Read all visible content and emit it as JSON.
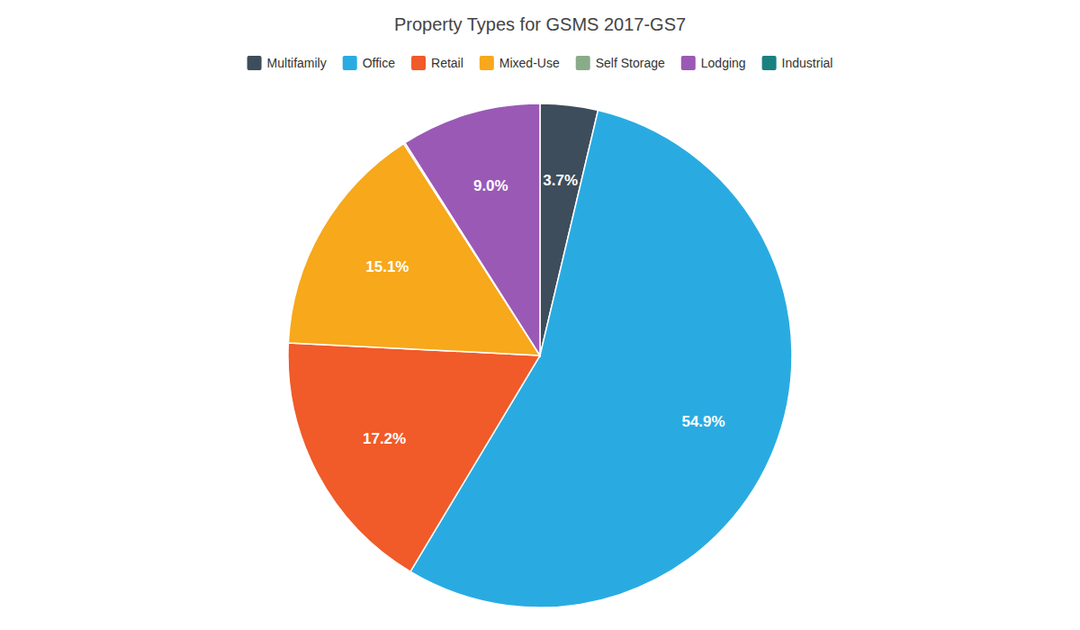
{
  "chart_data": {
    "type": "pie",
    "title": "Property Types for GSMS 2017-GS7",
    "categories": [
      "Multifamily",
      "Office",
      "Retail",
      "Mixed-Use",
      "Self Storage",
      "Lodging",
      "Industrial"
    ],
    "values": [
      3.7,
      54.9,
      17.2,
      15.1,
      0.1,
      9.0,
      0.0
    ],
    "value_labels": [
      "3.7%",
      "54.9%",
      "17.2%",
      "15.1%",
      null,
      "9.0%",
      null
    ],
    "colors": [
      "#3d4d5c",
      "#29abe2",
      "#f15a29",
      "#f7a81b",
      "#8aab8a",
      "#9b59b6",
      "#1a8080"
    ],
    "data_labels": true,
    "legend": "top"
  }
}
